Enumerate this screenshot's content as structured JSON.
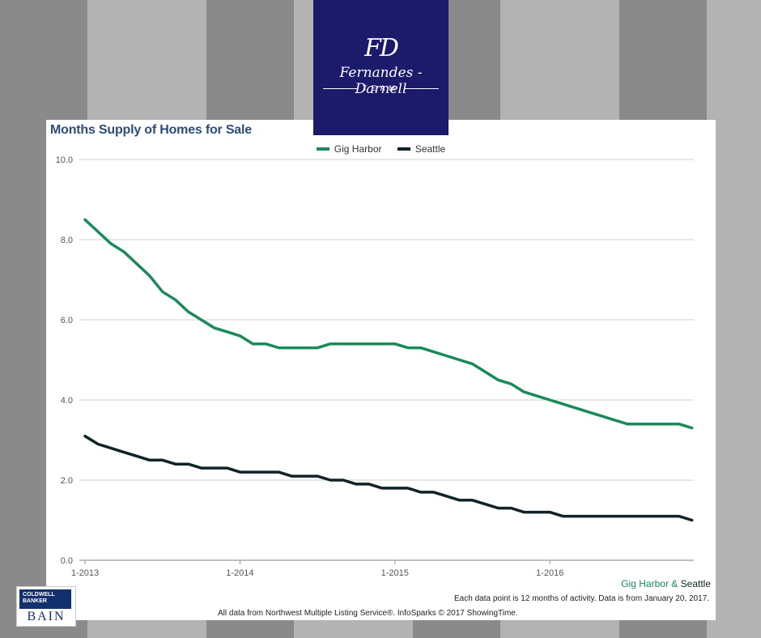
{
  "brand": {
    "logo_mark": "FD",
    "logo_name": "Fernandes - Darnell",
    "logo_team": "TEAM",
    "footer_logo_top": "COLDWELL BANKER",
    "footer_logo_bottom": "BAIN"
  },
  "colors": {
    "gig_harbor": "#1a8a5a",
    "seattle": "#0f2328",
    "title": "#2a4d7a",
    "logo_bg": "#1c1a6b"
  },
  "chart_data": {
    "type": "line",
    "title": "Months Supply of Homes for Sale",
    "xlabel": "",
    "ylabel": "",
    "ylim": [
      0,
      10
    ],
    "yticks": [
      "0.0",
      "2.0",
      "4.0",
      "6.0",
      "8.0",
      "10.0"
    ],
    "xticks": [
      "1-2013",
      "1-2014",
      "1-2015",
      "1-2016"
    ],
    "grid": true,
    "legend_position": "top-center",
    "x": [
      "1-2013",
      "2-2013",
      "3-2013",
      "4-2013",
      "5-2013",
      "6-2013",
      "7-2013",
      "8-2013",
      "9-2013",
      "10-2013",
      "11-2013",
      "12-2013",
      "1-2014",
      "2-2014",
      "3-2014",
      "4-2014",
      "5-2014",
      "6-2014",
      "7-2014",
      "8-2014",
      "9-2014",
      "10-2014",
      "11-2014",
      "12-2014",
      "1-2015",
      "2-2015",
      "3-2015",
      "4-2015",
      "5-2015",
      "6-2015",
      "7-2015",
      "8-2015",
      "9-2015",
      "10-2015",
      "11-2015",
      "12-2015",
      "1-2016",
      "2-2016",
      "3-2016",
      "4-2016",
      "5-2016",
      "6-2016",
      "7-2016",
      "8-2016",
      "9-2016",
      "10-2016",
      "11-2016",
      "12-2016"
    ],
    "series": [
      {
        "name": "Gig Harbor",
        "values": [
          8.5,
          8.2,
          7.9,
          7.7,
          7.4,
          7.1,
          6.7,
          6.5,
          6.2,
          6.0,
          5.8,
          5.7,
          5.6,
          5.4,
          5.4,
          5.3,
          5.3,
          5.3,
          5.3,
          5.4,
          5.4,
          5.4,
          5.4,
          5.4,
          5.4,
          5.3,
          5.3,
          5.2,
          5.1,
          5.0,
          4.9,
          4.7,
          4.5,
          4.4,
          4.2,
          4.1,
          4.0,
          3.9,
          3.8,
          3.7,
          3.6,
          3.5,
          3.4,
          3.4,
          3.4,
          3.4,
          3.4,
          3.3
        ]
      },
      {
        "name": "Seattle",
        "values": [
          3.1,
          2.9,
          2.8,
          2.7,
          2.6,
          2.5,
          2.5,
          2.4,
          2.4,
          2.3,
          2.3,
          2.3,
          2.2,
          2.2,
          2.2,
          2.2,
          2.1,
          2.1,
          2.1,
          2.0,
          2.0,
          1.9,
          1.9,
          1.8,
          1.8,
          1.8,
          1.7,
          1.7,
          1.6,
          1.5,
          1.5,
          1.4,
          1.3,
          1.3,
          1.2,
          1.2,
          1.2,
          1.1,
          1.1,
          1.1,
          1.1,
          1.1,
          1.1,
          1.1,
          1.1,
          1.1,
          1.1,
          1.0
        ]
      }
    ],
    "source_tag": {
      "part1": "Gig Harbor",
      "sep": " & ",
      "part2": "Seattle"
    },
    "note1": "Each data point is 12 months of activity. Data is from January 20, 2017.",
    "note2": "All data from Northwest Multiple Listing Service®. InfoSparks © 2017 ShowingTime."
  }
}
